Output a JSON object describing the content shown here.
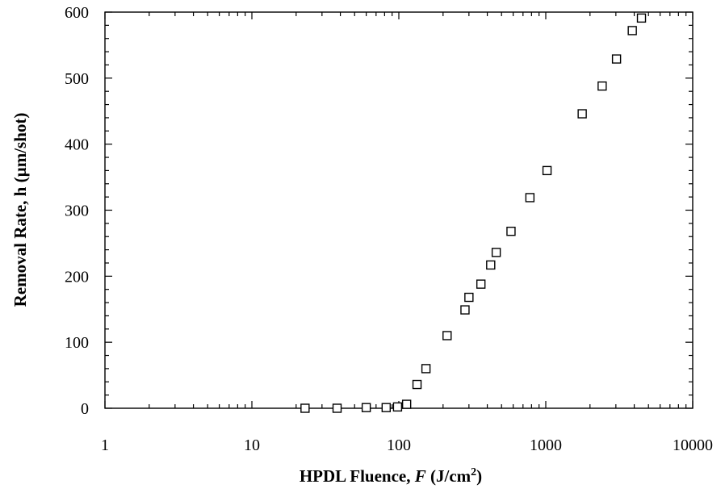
{
  "chart_data": {
    "type": "scatter",
    "title": "",
    "xlabel_prefix": "HPDL Fluence, ",
    "xlabel_var": "F",
    "xlabel_unit": " (J/cm",
    "xlabel_sup": "2",
    "xlabel_close": ")",
    "ylabel": "Removal Rate, h (µm/shot)",
    "x_scale": "log",
    "xlim": [
      1,
      10000
    ],
    "ylim": [
      0,
      600
    ],
    "x_ticks": [
      1,
      10,
      100,
      1000,
      10000
    ],
    "x_tick_labels": [
      "1",
      "10",
      "100",
      "1000",
      "10000"
    ],
    "y_ticks": [
      0,
      100,
      200,
      300,
      400,
      500,
      600
    ],
    "y_tick_labels": [
      "0",
      "100",
      "200",
      "300",
      "400",
      "500",
      "600"
    ],
    "grid": false,
    "marker": "open-square",
    "series": [
      {
        "x": [
          23,
          38,
          60,
          82,
          98,
          113,
          133,
          153,
          213,
          282,
          300,
          362,
          422,
          460,
          580,
          780,
          1020,
          1770,
          2420,
          3030,
          3880,
          4480
        ],
        "y": [
          0,
          0,
          1,
          1,
          2,
          6,
          36,
          60,
          110,
          149,
          168,
          188,
          217,
          236,
          268,
          319,
          360,
          446,
          488,
          529,
          572,
          591
        ]
      }
    ]
  }
}
